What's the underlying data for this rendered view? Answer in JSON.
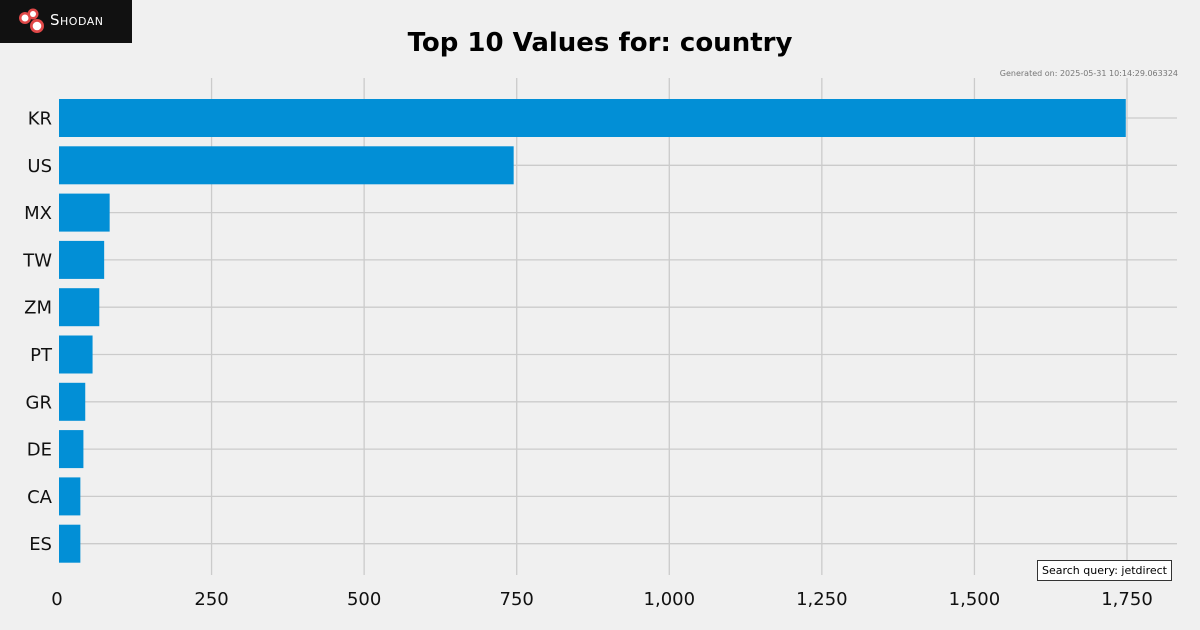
{
  "brand": {
    "name": "Shodan"
  },
  "generated_label": "Generated on: 2025-05-31 10:14:29.063324",
  "query_label": "Search query: jetdirect",
  "colors": {
    "background": "#f0f0f0",
    "bar": "#028fd6",
    "grid": "#cbcbcb",
    "logo_bg": "#111111",
    "logo_accent": "#e04848"
  },
  "chart_data": {
    "type": "bar",
    "orientation": "horizontal",
    "title": "Top 10 Values for: country",
    "xlabel": "",
    "ylabel": "",
    "categories": [
      "KR",
      "US",
      "MX",
      "TW",
      "ZM",
      "PT",
      "GR",
      "DE",
      "CA",
      "ES"
    ],
    "values": [
      1748,
      745,
      83,
      74,
      66,
      55,
      43,
      40,
      35,
      35
    ],
    "xlim": [
      0,
      1800
    ],
    "xticks": [
      0,
      250,
      500,
      750,
      1000,
      1250,
      1500,
      1750
    ],
    "xtick_labels": [
      "0",
      "250",
      "500",
      "750",
      "1,000",
      "1,250",
      "1,500",
      "1,750"
    ],
    "grid": true,
    "legend": "none"
  }
}
